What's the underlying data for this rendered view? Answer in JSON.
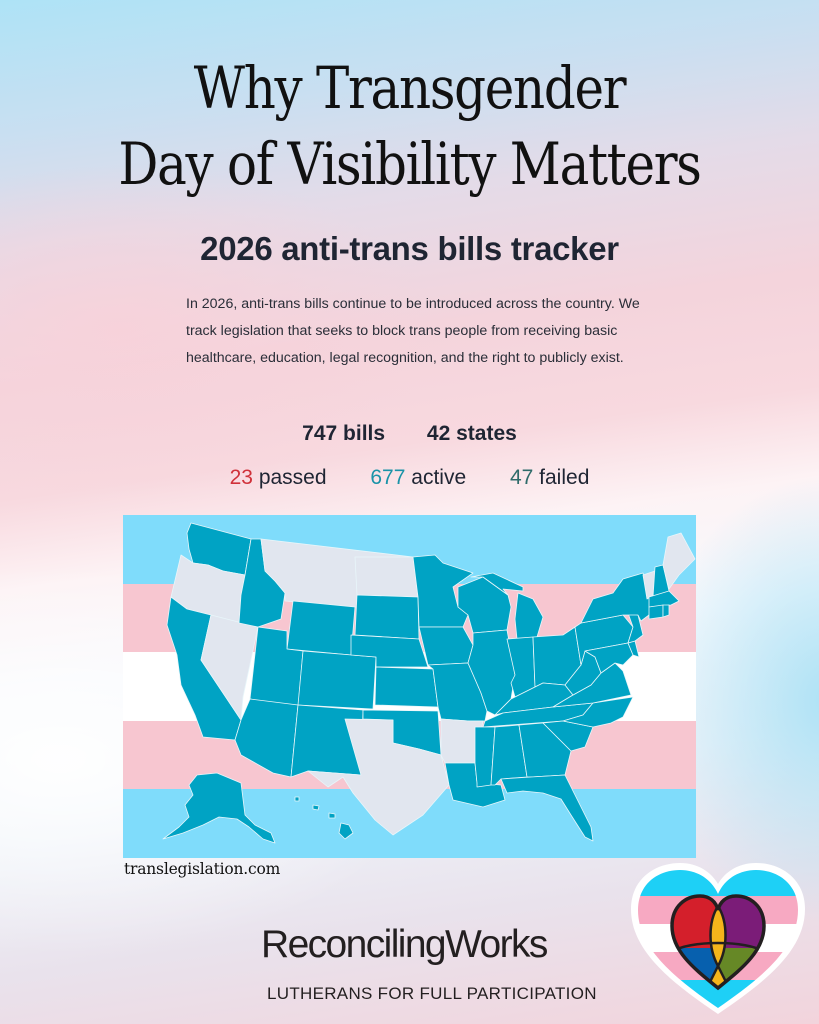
{
  "header": {
    "title_line1": "Why Transgender",
    "title_line2": "Day of Visibility Matters",
    "subtitle": "2026 anti-trans bills tracker"
  },
  "intro": {
    "text": "In 2026, anti-trans bills continue to be introduced across the country. We track legislation that seeks to block trans people from receiving basic healthcare, education, legal recognition, and the right to publicly exist."
  },
  "totals": {
    "bills": "747 bills",
    "states": "42 states"
  },
  "statuses": {
    "passed": {
      "count": "23",
      "label": "passed",
      "color": "#d0313a"
    },
    "active": {
      "count": "677",
      "label": "active",
      "color": "#1a93a8"
    },
    "failed": {
      "count": "47",
      "label": "failed",
      "color": "#2e6b6a"
    }
  },
  "map": {
    "flag_colors": [
      "#7fdcfb",
      "#f7c6d0",
      "#ffffff",
      "#f7c6d0",
      "#7fdcfb"
    ],
    "state_with_bills_color": "#00a3c4",
    "state_without_bills_color": "#e1e6ef",
    "states_without_bills": [
      "Oregon",
      "Montana",
      "North Dakota",
      "Nevada",
      "Texas",
      "Arkansas",
      "Vermont",
      "Maine"
    ]
  },
  "source": "translegislation.com",
  "footer": {
    "brand": "ReconcilingWorks",
    "tagline": "LUTHERANS FOR FULL PARTICIPATION"
  }
}
